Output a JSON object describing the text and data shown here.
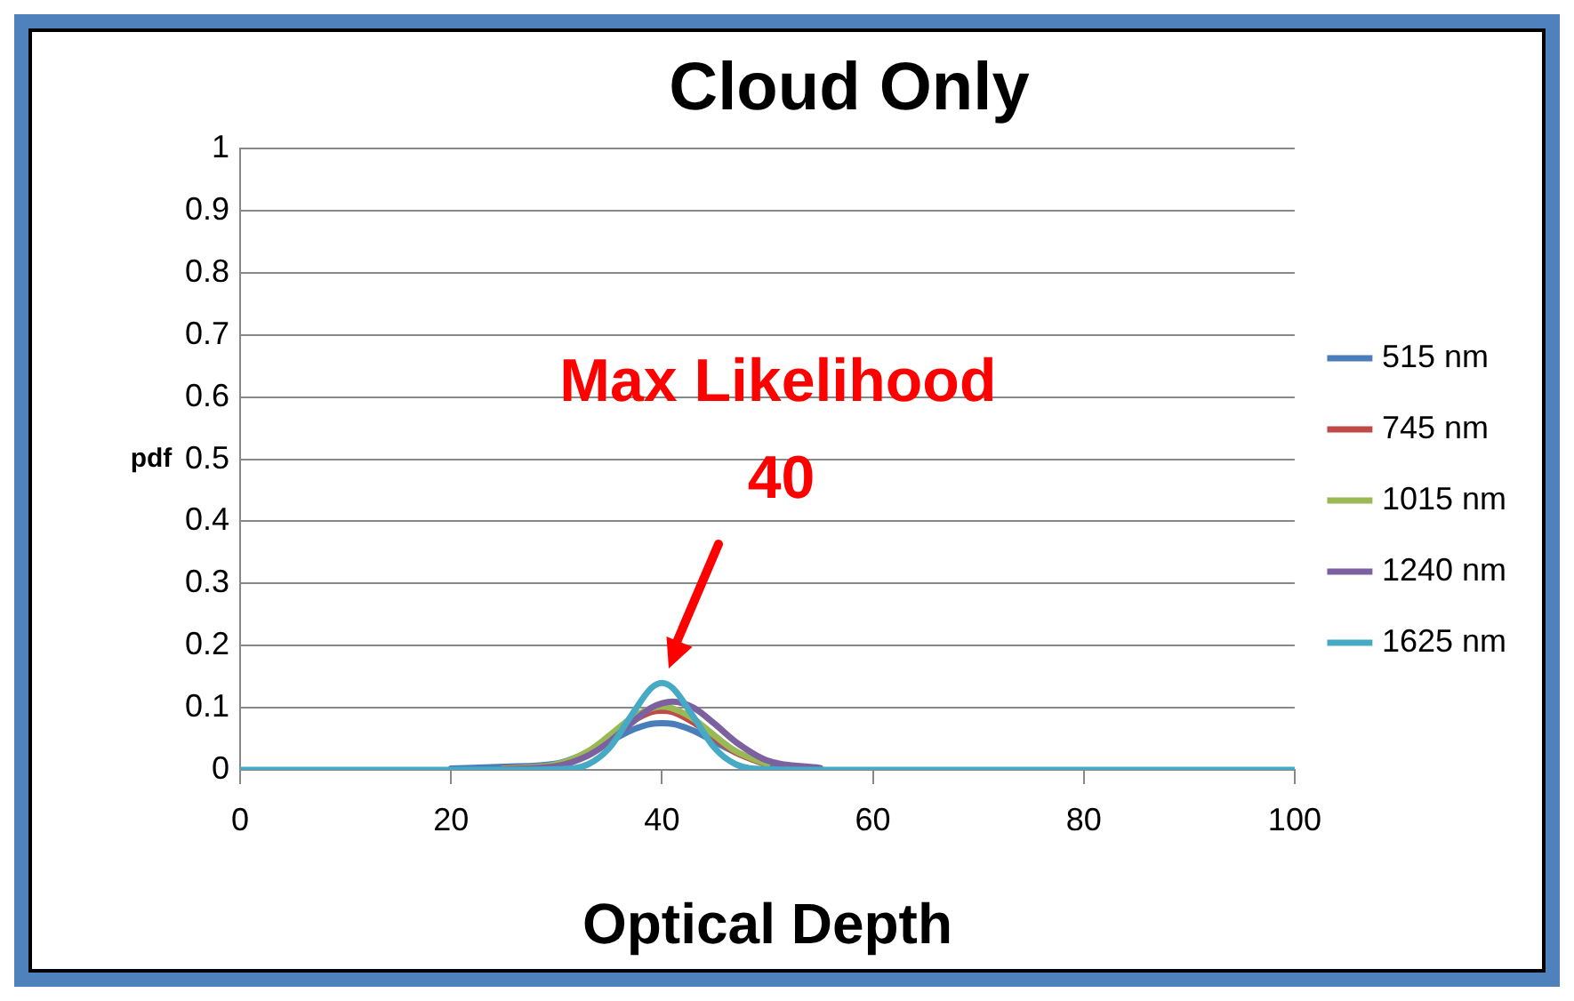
{
  "chart_data": {
    "type": "line",
    "title": "Cloud Only",
    "xlabel": "Optical Depth",
    "ylabel": "pdf",
    "x": [
      0,
      10,
      20,
      25,
      30,
      33,
      35,
      37,
      39,
      40,
      41,
      43,
      45,
      47,
      50,
      55,
      60,
      70,
      80,
      90,
      100
    ],
    "series": [
      {
        "name": "515 nm",
        "color": "#4a7ebb",
        "values": [
          null,
          null,
          0.002,
          0.005,
          0.01,
          0.028,
          0.045,
          0.063,
          0.074,
          0.075,
          0.074,
          0.063,
          0.045,
          0.028,
          0.01,
          0.002,
          null,
          null,
          null,
          null,
          null
        ]
      },
      {
        "name": "745 nm",
        "color": "#be4b48",
        "values": [
          null,
          null,
          null,
          0.003,
          0.008,
          0.028,
          0.051,
          0.076,
          0.093,
          0.095,
          0.093,
          0.076,
          0.051,
          0.028,
          0.008,
          null,
          null,
          null,
          null,
          null,
          null
        ]
      },
      {
        "name": "1015 nm",
        "color": "#98b954",
        "values": [
          null,
          null,
          null,
          0.002,
          0.009,
          0.03,
          0.055,
          0.082,
          0.099,
          0.102,
          0.099,
          0.082,
          0.055,
          0.03,
          0.009,
          null,
          null,
          null,
          null,
          null,
          null
        ]
      },
      {
        "name": "1240 nm",
        "color": "#7d60a0",
        "values": [
          null,
          null,
          null,
          0.001,
          0.006,
          0.023,
          0.045,
          0.074,
          0.1,
          0.107,
          0.11,
          0.1,
          0.074,
          0.045,
          0.015,
          0.003,
          null,
          null,
          null,
          null,
          null
        ]
      },
      {
        "name": "1625 nm",
        "color": "#46aac5",
        "values": [
          0,
          0,
          0,
          0,
          0.001,
          0.009,
          0.035,
          0.085,
          0.132,
          0.14,
          0.132,
          0.085,
          0.035,
          0.009,
          0.001,
          0,
          0,
          0,
          0,
          0,
          0
        ]
      }
    ],
    "xlim": [
      0,
      100
    ],
    "xticks": [
      0,
      20,
      40,
      60,
      80,
      100
    ],
    "ylim": [
      0,
      1
    ],
    "yticks": [
      0,
      0.1,
      0.2,
      0.3,
      0.4,
      0.5,
      0.6,
      0.7,
      0.8,
      0.9,
      1
    ],
    "grid": "y",
    "legend": "right",
    "marker": "none",
    "line_style": "solid",
    "annotations": [
      "Max Likelihood",
      "40"
    ]
  }
}
